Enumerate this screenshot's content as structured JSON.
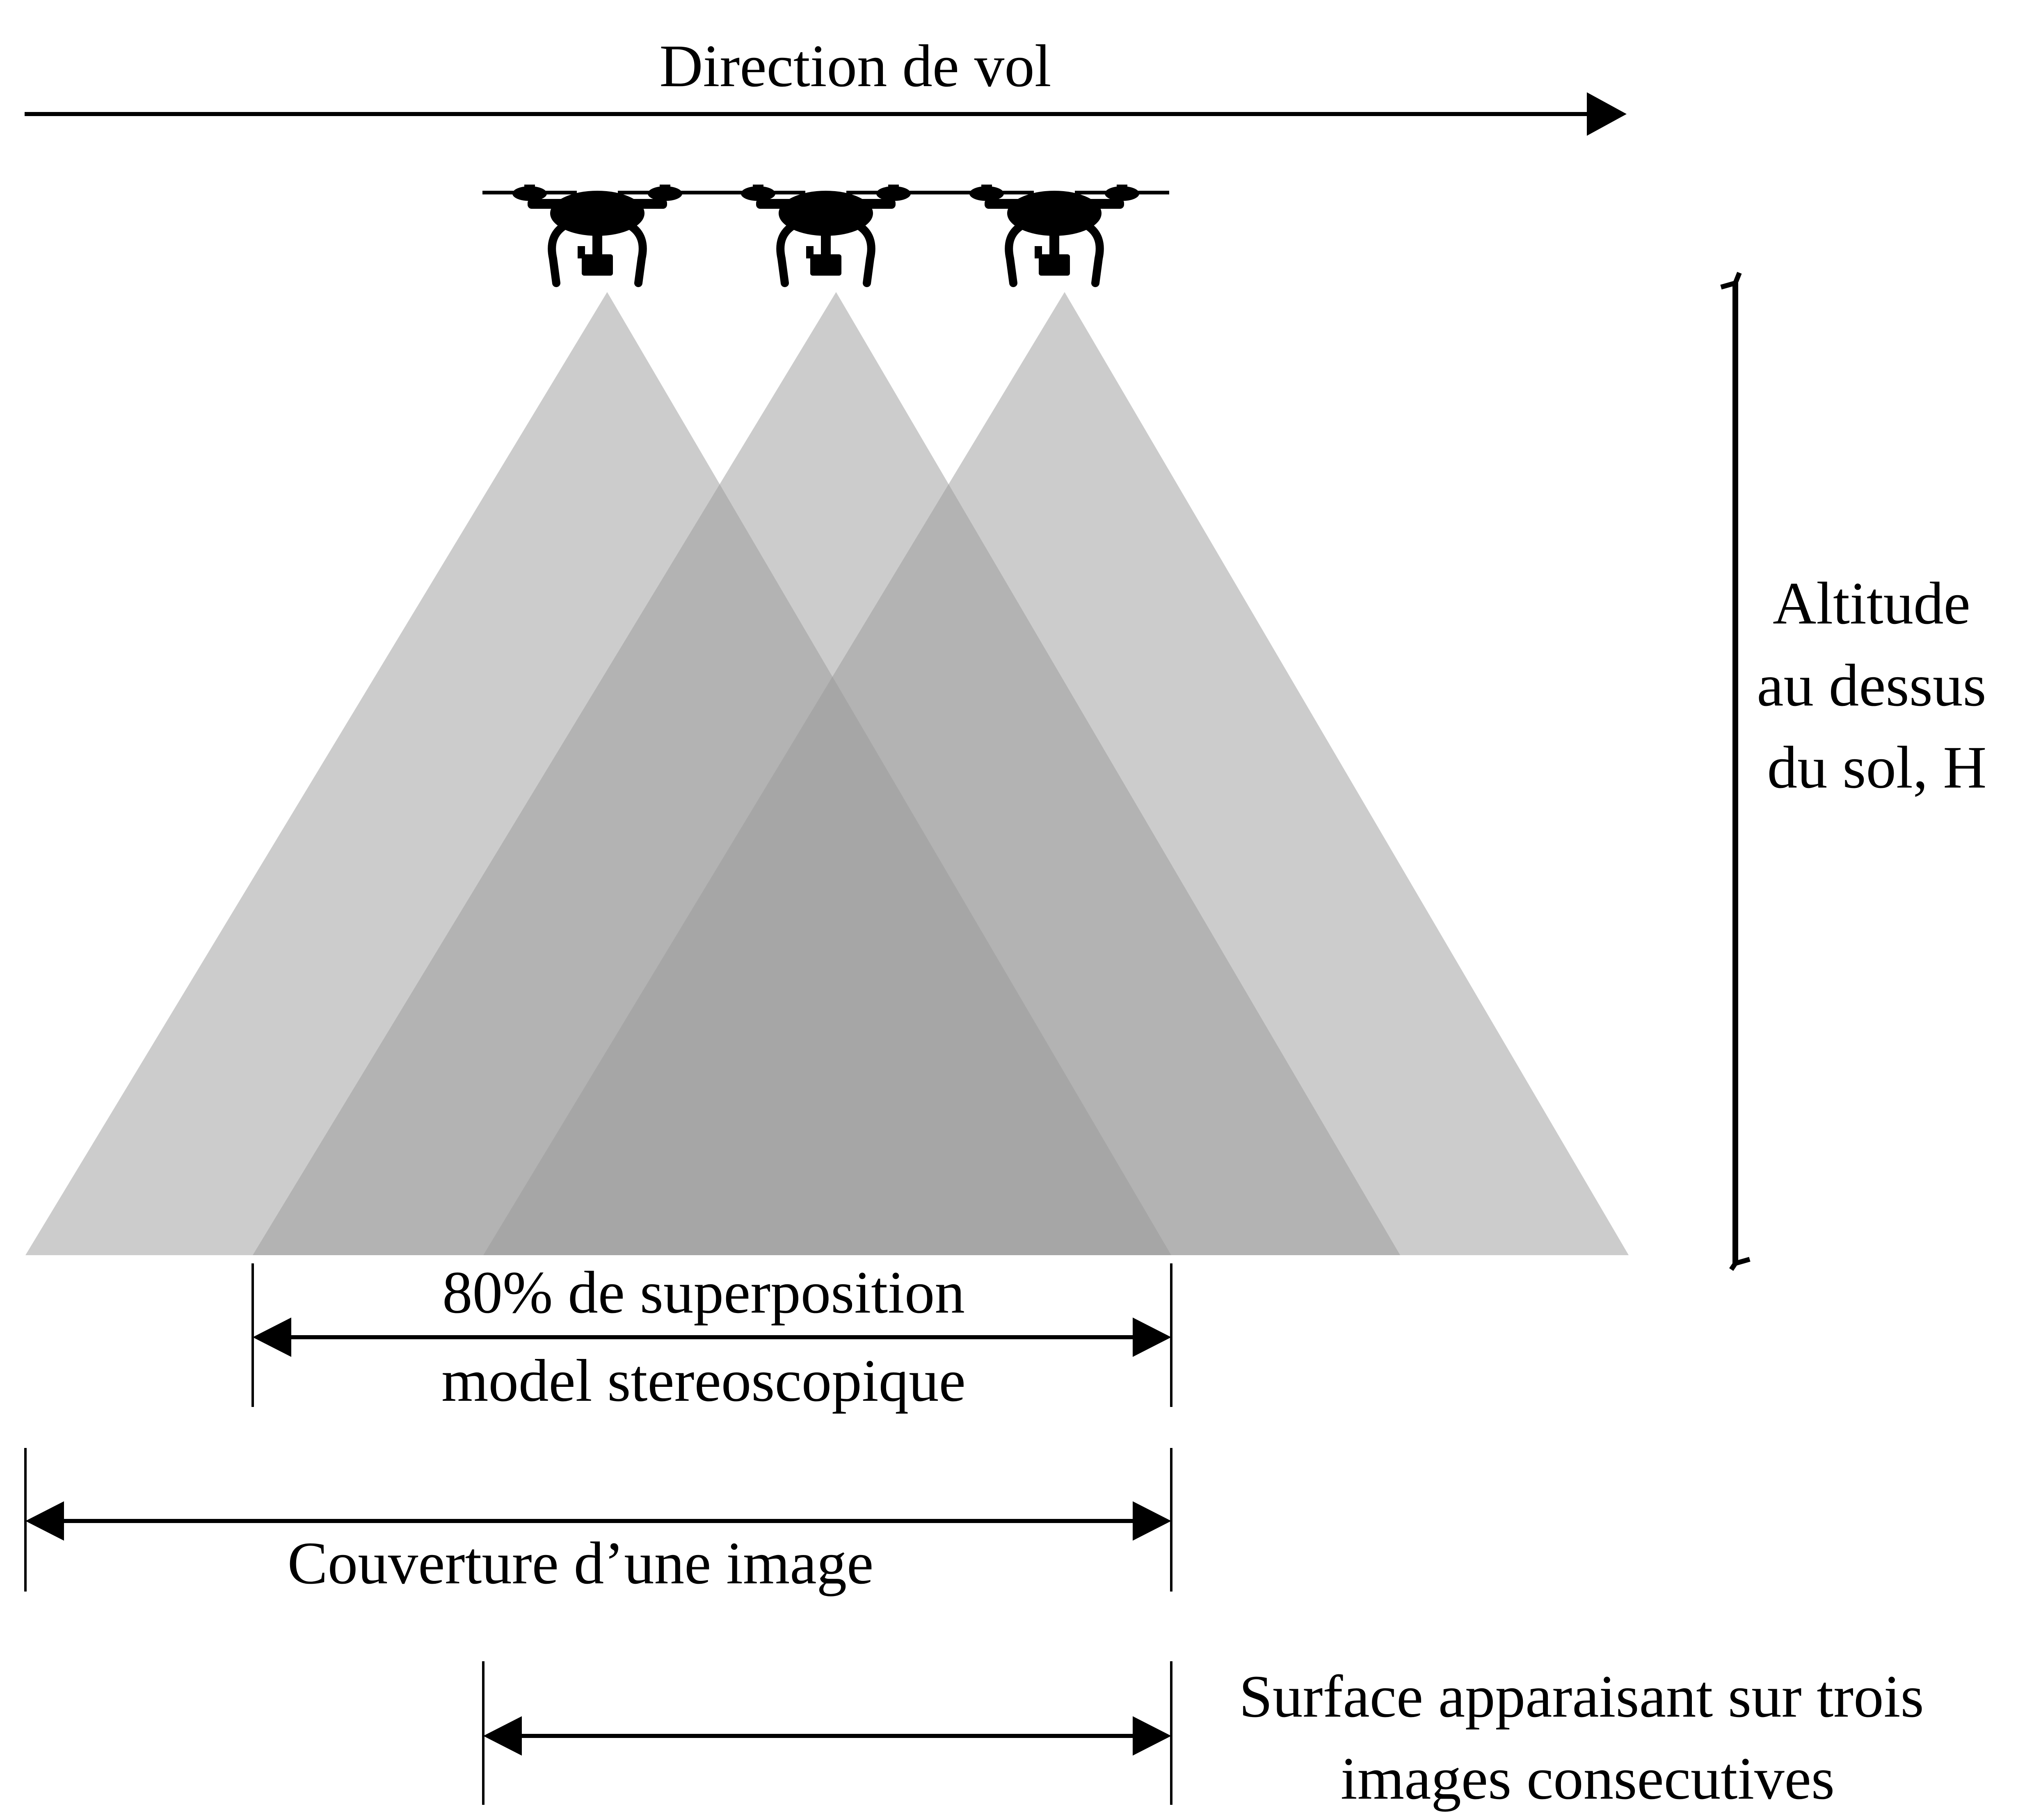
{
  "labels": {
    "flight_direction": "Direction de vol",
    "altitude_line1": "Altitude",
    "altitude_line2": "au dessus",
    "altitude_line3": "du sol, H",
    "overlap_line1": "80% de superposition",
    "overlap_line2": "model stereoscopique",
    "image_coverage": "Couverture d’une image",
    "triple_surface_line1": "Surface apparaisant sur trois",
    "triple_surface_line2": "images consecutives"
  },
  "drones": [
    {
      "icon": "drone-icon"
    },
    {
      "icon": "drone-icon"
    },
    {
      "icon": "drone-icon"
    }
  ],
  "colors": {
    "cone_fill": "#9a9a9a",
    "line": "#000000",
    "background": "#ffffff"
  }
}
